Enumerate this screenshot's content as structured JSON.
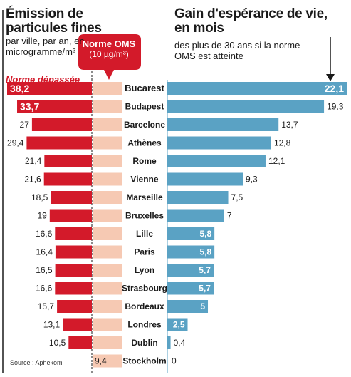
{
  "left_title": "Émission de particules fines",
  "left_subtitle": "par ville, par an, en microgramme/m³",
  "norme_label": "Norme dépassée",
  "oms_title": "Norme OMS",
  "oms_value": "(10 µg/m³)",
  "right_title": "Gain d'espérance de vie, en mois",
  "right_subtitle": "des plus de 30 ans si la norme OMS est atteinte",
  "source": "Source : Aphekom",
  "colors": {
    "red": "#d31a2a",
    "pink": "#f6c9b3",
    "blue": "#5aa2c4",
    "axis": "#1a1a1a"
  },
  "chart_data": {
    "type": "bar",
    "categories": [
      "Bucarest",
      "Budapest",
      "Barcelone",
      "Athènes",
      "Rome",
      "Vienne",
      "Marseille",
      "Bruxelles",
      "Lille",
      "Paris",
      "Lyon",
      "Strasbourg",
      "Bordeaux",
      "Londres",
      "Dublin",
      "Stockholm"
    ],
    "emission_labels": [
      "38,2",
      "33,7",
      "27",
      "29,4",
      "21,4",
      "21,6",
      "18,5",
      "19",
      "16,6",
      "16,4",
      "16,5",
      "16,6",
      "15,7",
      "13,1",
      "10,5",
      "9,4"
    ],
    "gain_labels": [
      "22,1",
      "19,3",
      "13,7",
      "12,8",
      "12,1",
      "9,3",
      "7,5",
      "7",
      "5,8",
      "5,8",
      "5,7",
      "5,7",
      "5",
      "2,5",
      "0,4",
      "0"
    ],
    "series": [
      {
        "name": "Émission de particules fines",
        "values": [
          38.2,
          33.7,
          27,
          29.4,
          21.4,
          21.6,
          18.5,
          19,
          16.6,
          16.4,
          16.5,
          16.6,
          15.7,
          13.1,
          10.5,
          9.4
        ]
      },
      {
        "name": "Gain d'espérance de vie",
        "values": [
          22.1,
          19.3,
          13.7,
          12.8,
          12.1,
          9.3,
          7.5,
          7,
          5.8,
          5.8,
          5.7,
          5.7,
          5,
          2.5,
          0.4,
          0
        ]
      }
    ],
    "oms_norm": 10,
    "emission_max": 38.2,
    "gain_max": 22.1
  }
}
